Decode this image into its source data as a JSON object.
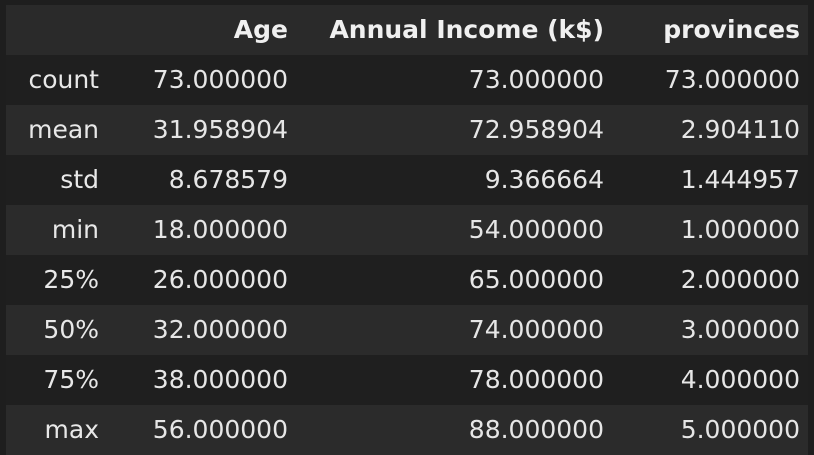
{
  "table": {
    "columns": [
      "",
      "Age",
      "Annual Income (k$)",
      "provinces"
    ],
    "rows": [
      {
        "label": "count",
        "values": [
          "73.000000",
          "73.000000",
          "73.000000"
        ]
      },
      {
        "label": "mean",
        "values": [
          "31.958904",
          "72.958904",
          "2.904110"
        ]
      },
      {
        "label": "std",
        "values": [
          "8.678579",
          "9.366664",
          "1.444957"
        ]
      },
      {
        "label": "min",
        "values": [
          "18.000000",
          "54.000000",
          "1.000000"
        ]
      },
      {
        "label": "25%",
        "values": [
          "26.000000",
          "65.000000",
          "2.000000"
        ]
      },
      {
        "label": "50%",
        "values": [
          "32.000000",
          "74.000000",
          "3.000000"
        ]
      },
      {
        "label": "75%",
        "values": [
          "38.000000",
          "78.000000",
          "4.000000"
        ]
      },
      {
        "label": "max",
        "values": [
          "56.000000",
          "88.000000",
          "5.000000"
        ]
      }
    ]
  },
  "colors": {
    "background": "#1e1e1e",
    "header_row": "#2a2a2a",
    "row_odd": "#1f1f1f",
    "row_even": "#2b2b2b",
    "text": "#e6e6e6"
  }
}
